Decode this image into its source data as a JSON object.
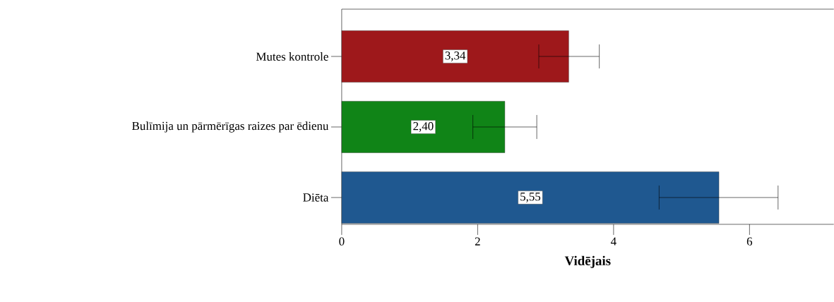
{
  "chart_data": {
    "type": "bar",
    "orientation": "horizontal",
    "xlabel": "Vidējais",
    "categories": [
      "Mutes kontrole",
      "Bulīmija un pārmērīgas raizes par ēdienu",
      "Diēta"
    ],
    "values": [
      3.34,
      2.4,
      5.55
    ],
    "colors": [
      "#9e181b",
      "#108417",
      "#1f5890"
    ],
    "errors": [
      [
        2.9,
        3.79
      ],
      [
        1.93,
        2.87
      ],
      [
        4.67,
        6.42
      ]
    ],
    "value_labels": [
      "3,34",
      "2,40",
      "5,55"
    ],
    "xlim": [
      0,
      7.24
    ],
    "xticks": [
      0,
      2,
      4,
      6
    ]
  }
}
